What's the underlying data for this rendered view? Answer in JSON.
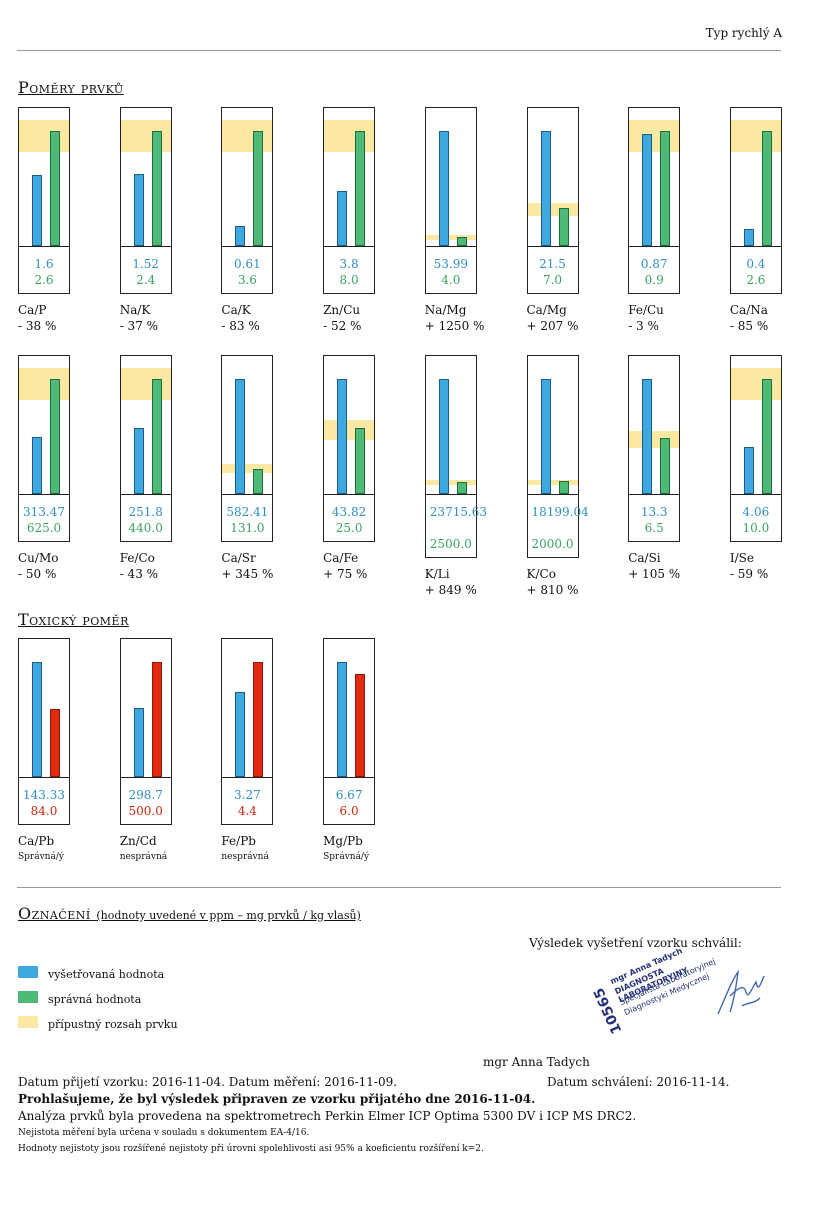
{
  "header": {
    "type_label": "Typ rychlý A"
  },
  "sections": {
    "ratios_title": "Poměry prvků",
    "toxic_title": "Toxický poměr",
    "legend_title": "Označení",
    "legend_subtitle": "(hodnoty uvedené v ppm – mg prvků / kg vlasů)"
  },
  "colors": {
    "measured": "#3ea9e0",
    "correct": "#4dbb77",
    "toxic": "#e22a10",
    "range": "#fbe9a3"
  },
  "chart_data": [
    {
      "type": "bar",
      "title": "Poměry prvků",
      "series": [
        {
          "name": "vyšetřovaná hodnota",
          "key": "measured"
        },
        {
          "name": "správná hodnota",
          "key": "correct"
        }
      ],
      "items": [
        {
          "ratio": "Ca/P",
          "measured": "1.6",
          "correct": "2.6",
          "deviation": "- 38 %",
          "m_level": 0.62,
          "c_level": 1.0,
          "range": [
            0.82,
            1.1
          ]
        },
        {
          "ratio": "Na/K",
          "measured": "1.52",
          "correct": "2.4",
          "deviation": "- 37 %",
          "m_level": 0.63,
          "c_level": 1.0,
          "range": [
            0.82,
            1.1
          ]
        },
        {
          "ratio": "Ca/K",
          "measured": "0.61",
          "correct": "3.6",
          "deviation": "- 83 %",
          "m_level": 0.17,
          "c_level": 1.0,
          "range": [
            0.82,
            1.1
          ]
        },
        {
          "ratio": "Zn/Cu",
          "measured": "3.8",
          "correct": "8.0",
          "deviation": "- 52 %",
          "m_level": 0.48,
          "c_level": 1.0,
          "range": [
            0.82,
            1.1
          ]
        },
        {
          "ratio": "Na/Mg",
          "measured": "53.99",
          "correct": "4.0",
          "deviation": "+ 1250 %",
          "m_level": 1.0,
          "c_level": 0.074,
          "range": [
            0.05,
            0.1
          ]
        },
        {
          "ratio": "Ca/Mg",
          "measured": "21.5",
          "correct": "7.0",
          "deviation": "+ 207 %",
          "m_level": 1.0,
          "c_level": 0.33,
          "range": [
            0.26,
            0.37
          ]
        },
        {
          "ratio": "Fe/Cu",
          "measured": "0.87",
          "correct": "0.9",
          "deviation": "- 3 %",
          "m_level": 0.97,
          "c_level": 1.0,
          "range": [
            0.82,
            1.1
          ]
        },
        {
          "ratio": "Ca/Na",
          "measured": "0.4",
          "correct": "2.6",
          "deviation": "- 85 %",
          "m_level": 0.15,
          "c_level": 1.0,
          "range": [
            0.82,
            1.1
          ]
        },
        {
          "ratio": "Cu/Mo",
          "measured": "313.47",
          "correct": "625.0",
          "deviation": "- 50 %",
          "m_level": 0.5,
          "c_level": 1.0,
          "range": [
            0.82,
            1.1
          ]
        },
        {
          "ratio": "Fe/Co",
          "measured": "251.8",
          "correct": "440.0",
          "deviation": "- 43 %",
          "m_level": 0.57,
          "c_level": 1.0,
          "range": [
            0.82,
            1.1
          ]
        },
        {
          "ratio": "Ca/Sr",
          "measured": "582.41",
          "correct": "131.0",
          "deviation": "+ 345 %",
          "m_level": 1.0,
          "c_level": 0.22,
          "range": [
            0.18,
            0.26
          ]
        },
        {
          "ratio": "Ca/Fe",
          "measured": "43.82",
          "correct": "25.0",
          "deviation": "+ 75 %",
          "m_level": 1.0,
          "c_level": 0.57,
          "range": [
            0.47,
            0.64
          ]
        },
        {
          "ratio": "K/Li",
          "measured": "23715.63",
          "correct": "2500.0",
          "deviation": "+ 849 %",
          "m_level": 1.0,
          "c_level": 0.105,
          "range": [
            0.08,
            0.12
          ]
        },
        {
          "ratio": "K/Co",
          "measured": "18199.04",
          "correct": "2000.0",
          "deviation": "+ 810 %",
          "m_level": 1.0,
          "c_level": 0.11,
          "range": [
            0.08,
            0.12
          ]
        },
        {
          "ratio": "Ca/Si",
          "measured": "13.3",
          "correct": "6.5",
          "deviation": "+ 105 %",
          "m_level": 1.0,
          "c_level": 0.49,
          "range": [
            0.4,
            0.55
          ]
        },
        {
          "ratio": "I/Se",
          "measured": "4.06",
          "correct": "10.0",
          "deviation": "- 59 %",
          "m_level": 0.41,
          "c_level": 1.0,
          "range": [
            0.82,
            1.1
          ]
        }
      ]
    },
    {
      "type": "bar",
      "title": "Toxický poměr",
      "series": [
        {
          "name": "vyšetřovaná hodnota",
          "key": "measured"
        },
        {
          "name": "správná hodnota",
          "key": "correct"
        }
      ],
      "items": [
        {
          "ratio": "Ca/Pb",
          "measured": "143.33",
          "correct": "84.0",
          "status": "Správná/ý",
          "m_level": 1.0,
          "c_level": 0.59
        },
        {
          "ratio": "Zn/Cd",
          "measured": "298.7",
          "correct": "500.0",
          "status": "nesprávná",
          "m_level": 0.6,
          "c_level": 1.0
        },
        {
          "ratio": "Fe/Pb",
          "measured": "3.27",
          "correct": "4.4",
          "status": "nesprávná",
          "m_level": 0.74,
          "c_level": 1.0
        },
        {
          "ratio": "Mg/Pb",
          "measured": "6.67",
          "correct": "6.0",
          "status": "Správná/ý",
          "m_level": 1.0,
          "c_level": 0.9
        }
      ]
    }
  ],
  "legend": {
    "approved_by": "Výsledek vyšetření vzorku schválil:",
    "items": [
      "vyšetřovaná hodnota",
      "správná hodnota",
      "přípustný rozsah prvku"
    ]
  },
  "stamp": {
    "number": "10565",
    "line1": "mgr Anna Tadych",
    "line2": "DIAGNOSTA LABORATORYJNY",
    "line3": "Specjalista Laboratoryjnej",
    "line4": "Diagnostyki Medycznej"
  },
  "signatory": "mgr Anna Tadych",
  "footer": {
    "dates": "Datum přijetí vzorku: 2016-11-04. Datum měření: 2016-11-09.",
    "approval_date": "Datum schválení: 2016-11-14.",
    "declaration": "Prohlašujeme, že byl výsledek připraven ze vzorku přijatého dne 2016-11-04.",
    "analysis": "Analýza prvků byla provedena na spektrometrech Perkin Elmer ICP Optima 5300 DV i ICP MS DRC2.",
    "uncertainty": "Nejistota měření byla určena v souladu s dokumentem EA-4/16.",
    "uncertainty2": "Hodnoty nejistoty jsou rozšířené nejistoty při úrovni spolehlivosti asi 95% a koeficientu rozšíření k=2."
  }
}
